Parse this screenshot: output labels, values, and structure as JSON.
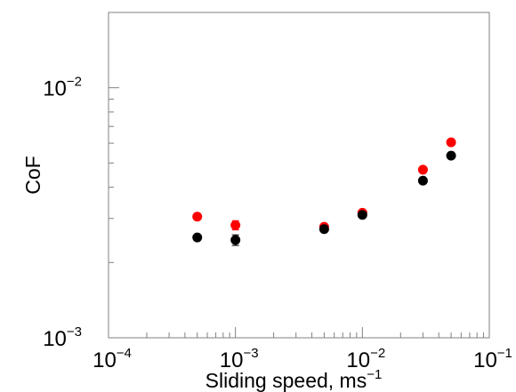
{
  "chart_data": {
    "type": "scatter",
    "title": "",
    "xlabel_main": "Sliding speed, ms",
    "xlabel_sup": "−1",
    "ylabel": "CoF",
    "x_scale": "log",
    "y_scale": "log",
    "xlim": [
      0.0001,
      0.1
    ],
    "ylim": [
      0.001,
      0.02
    ],
    "x_ticks": [
      {
        "value": 0.0001,
        "base": "10",
        "exp": "−4"
      },
      {
        "value": 0.001,
        "base": "10",
        "exp": "−3"
      },
      {
        "value": 0.01,
        "base": "10",
        "exp": "−2"
      },
      {
        "value": 0.1,
        "base": "10",
        "exp": "−1"
      }
    ],
    "y_ticks": [
      {
        "value": 0.001,
        "base": "10",
        "exp": "−3"
      },
      {
        "value": 0.01,
        "base": "10",
        "exp": "−2"
      }
    ],
    "grid": false,
    "legend": "none",
    "series": [
      {
        "color": "#ff0000",
        "points": [
          {
            "x": 0.0005,
            "y": 0.00305,
            "err": 8e-05
          },
          {
            "x": 0.001,
            "y": 0.00282,
            "err": 0.00012
          },
          {
            "x": 0.005,
            "y": 0.00278,
            "err": 5e-05
          },
          {
            "x": 0.01,
            "y": 0.00316,
            "err": 5e-05
          },
          {
            "x": 0.03,
            "y": 0.0047,
            "err": 6e-05
          },
          {
            "x": 0.05,
            "y": 0.00605,
            "err": 8e-05
          }
        ]
      },
      {
        "color": "#000000",
        "points": [
          {
            "x": 0.0005,
            "y": 0.00252,
            "err": 5e-05
          },
          {
            "x": 0.001,
            "y": 0.00246,
            "err": 0.00012
          },
          {
            "x": 0.005,
            "y": 0.00272,
            "err": 6e-05
          },
          {
            "x": 0.01,
            "y": 0.0031,
            "err": 5e-05
          },
          {
            "x": 0.03,
            "y": 0.00425,
            "err": 8e-05
          },
          {
            "x": 0.05,
            "y": 0.00535,
            "err": 8e-05
          }
        ]
      }
    ]
  }
}
